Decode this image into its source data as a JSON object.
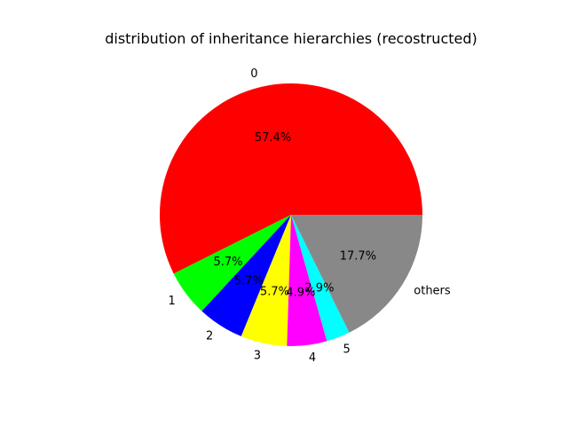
{
  "chart_data": {
    "type": "pie",
    "title": "distribution of inheritance hierarchies (recostructed)",
    "slices": [
      {
        "label": "0",
        "value": 57.4,
        "pct_label": "57.4%",
        "color": "#ff0000"
      },
      {
        "label": "1",
        "value": 5.7,
        "pct_label": "5.7%",
        "color": "#00ff00"
      },
      {
        "label": "2",
        "value": 5.7,
        "pct_label": "5.7%",
        "color": "#0000ff"
      },
      {
        "label": "3",
        "value": 5.7,
        "pct_label": "5.7%",
        "color": "#ffff00"
      },
      {
        "label": "4",
        "value": 4.9,
        "pct_label": "4.9%",
        "color": "#ff00ff"
      },
      {
        "label": "5",
        "value": 2.9,
        "pct_label": "2.9%",
        "color": "#00ffff"
      },
      {
        "label": "others",
        "value": 17.7,
        "pct_label": "17.7%",
        "color": "#888888"
      }
    ],
    "start_angle_deg": 0,
    "direction": "counterclockwise",
    "legend": "none",
    "grid": false
  }
}
